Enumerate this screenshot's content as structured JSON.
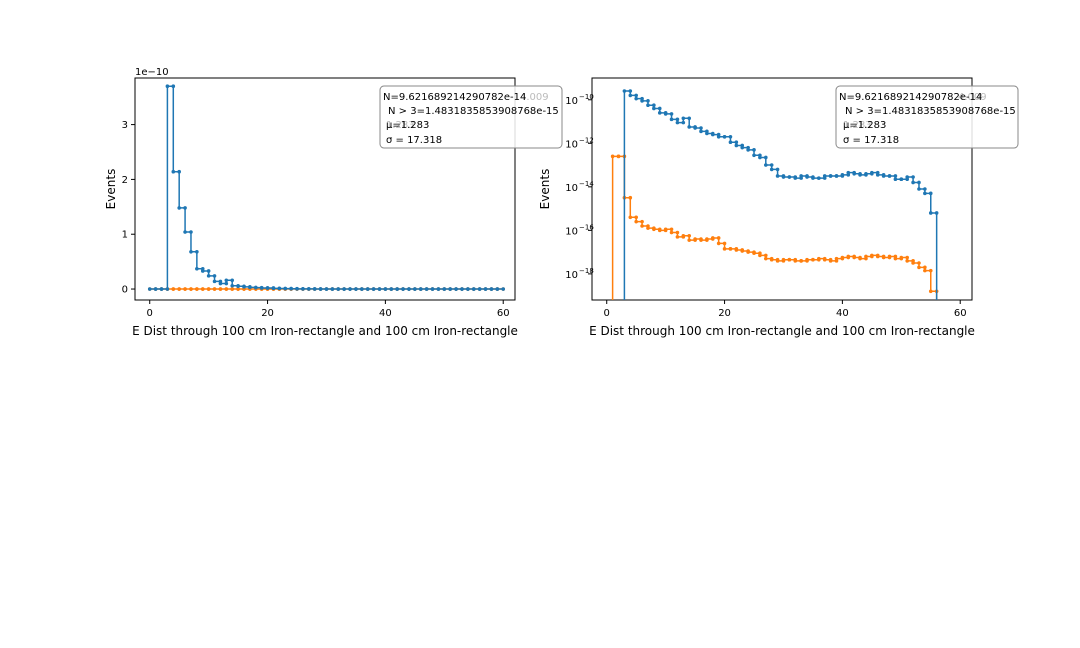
{
  "chart_data": [
    {
      "type": "line",
      "step": true,
      "yscale": "linear",
      "xlabel": "E Dist through 100 cm Iron-rectangle and 100 cm Iron-rectangle",
      "ylabel": "Events",
      "offset_text": "1e−10",
      "xlim": [
        -2.5,
        62
      ],
      "ylim": [
        -0.2,
        3.85
      ],
      "xticks": [
        0,
        20,
        40,
        60
      ],
      "xtick_labels": [
        "0",
        "20",
        "40",
        "60"
      ],
      "yticks": [
        0,
        1,
        2,
        3
      ],
      "ytick_labels": [
        "0",
        "1",
        "2",
        "3"
      ],
      "series": [
        {
          "name": "blue",
          "color": "#1f77b4",
          "x": [
            0.5,
            1.5,
            2.5,
            3.5,
            4.5,
            5.5,
            6.5,
            7.5,
            8.5,
            9.5,
            10.5,
            11.5,
            12.5,
            13.5,
            14.5,
            15.5,
            16.5,
            17.5,
            18.5,
            19.5,
            20.5,
            21.5,
            22.5,
            23.5,
            24.5,
            25.5,
            26.5,
            27.5,
            28.5,
            29.5,
            30.5,
            31.5,
            32.5,
            33.5,
            34.5,
            35.5,
            36.5,
            37.5,
            38.5,
            39.5,
            40.5,
            41.5,
            42.5,
            43.5,
            44.5,
            45.5,
            46.5,
            47.5,
            48.5,
            49.5,
            50.5,
            51.5,
            52.5,
            53.5,
            54.5,
            55.5,
            56.5,
            57.5,
            58.5,
            59.5
          ],
          "y": [
            0,
            0,
            0,
            3.7,
            2.14,
            1.48,
            1.04,
            0.68,
            0.37,
            0.33,
            0.24,
            0.14,
            0.1,
            0.16,
            0.06,
            0.05,
            0.04,
            0.03,
            0.025,
            0.02,
            0.02,
            0.013,
            0.01,
            0.008,
            0.006,
            0.004,
            0.003,
            0.002,
            0.001,
            0,
            0,
            0,
            0,
            0,
            0,
            0,
            0,
            0,
            0,
            0,
            0,
            0,
            0,
            0,
            0,
            0,
            0,
            0,
            0,
            0,
            0,
            0,
            0,
            0,
            0,
            0,
            0,
            0,
            0,
            0
          ]
        },
        {
          "name": "orange",
          "color": "#ff7f0e",
          "x": [
            0.5,
            1.5,
            2.5,
            3.5,
            4.5,
            5.5,
            6.5,
            7.5,
            8.5,
            9.5,
            10.5,
            11.5,
            12.5,
            13.5,
            14.5,
            15.5,
            16.5,
            17.5,
            18.5,
            19.5,
            20.5,
            21.5,
            22.5,
            23.5,
            24.5,
            25.5,
            26.5,
            27.5,
            28.5,
            29.5,
            30.5,
            31.5,
            32.5,
            33.5,
            34.5,
            35.5,
            36.5,
            37.5,
            38.5,
            39.5,
            40.5,
            41.5,
            42.5,
            43.5,
            44.5,
            45.5,
            46.5,
            47.5,
            48.5,
            49.5,
            50.5,
            51.5,
            52.5,
            53.5,
            54.5,
            55.5,
            56.5,
            57.5,
            58.5,
            59.5
          ],
          "y": [
            0,
            0,
            0,
            0,
            0,
            0,
            0,
            0,
            0,
            0,
            0,
            0,
            0,
            0,
            0,
            0,
            0,
            0,
            0,
            0,
            0,
            0,
            0,
            0,
            0,
            0,
            0,
            0,
            0,
            0,
            0,
            0,
            0,
            0,
            0,
            0,
            0,
            0,
            0,
            0,
            0,
            0,
            0,
            0,
            0,
            0,
            0,
            0,
            0,
            0,
            0,
            0,
            0,
            0,
            0,
            0,
            0,
            0,
            0,
            0
          ]
        }
      ],
      "legend_lines": [
        "N=9.621689214290782e-14",
        "N > 3=1.4831835853908768e-15",
        "μ=1.283",
        "σ = 17.318"
      ],
      "legend_ghost": [
        "4.009",
        "1.283"
      ],
      "legend_position": "top-right"
    },
    {
      "type": "line",
      "step": true,
      "yscale": "log",
      "xlabel": "E Dist through 100 cm Iron-rectangle and 100 cm Iron-rectangle",
      "ylabel": "Events",
      "xlim": [
        -2.5,
        62
      ],
      "ylim_log10": [
        -19.2,
        -9.0
      ],
      "xticks": [
        0,
        20,
        40,
        60
      ],
      "xtick_labels": [
        "0",
        "20",
        "40",
        "60"
      ],
      "yticks_log10": [
        -10,
        -12,
        -14,
        -16,
        -18
      ],
      "ytick_labels": [
        "10",
        "10",
        "10",
        "10",
        "10"
      ],
      "ytick_exponents": [
        "−10",
        "−12",
        "−14",
        "−16",
        "−18"
      ],
      "series": [
        {
          "name": "blue",
          "color": "#1f77b4",
          "x": [
            3.5,
            4.5,
            5.5,
            6.5,
            7.5,
            8.5,
            9.5,
            10.5,
            11.5,
            12.5,
            13.5,
            14.5,
            15.5,
            16.5,
            17.5,
            18.5,
            19.5,
            20.5,
            21.5,
            22.5,
            23.5,
            24.5,
            25.5,
            26.5,
            27.5,
            28.5,
            29.5,
            30.5,
            31.5,
            32.5,
            33.5,
            34.5,
            35.5,
            36.5,
            37.5,
            38.5,
            39.5,
            40.5,
            41.5,
            42.5,
            43.5,
            44.5,
            45.5,
            46.5,
            47.5,
            48.5,
            49.5,
            50.5,
            51.5,
            52.5,
            53.5,
            54.5,
            55.5
          ],
          "log10_y": [
            -9.6,
            -9.8,
            -9.95,
            -10.05,
            -10.25,
            -10.4,
            -10.6,
            -10.65,
            -10.9,
            -11.05,
            -10.85,
            -11.25,
            -11.3,
            -11.45,
            -11.55,
            -11.6,
            -11.7,
            -11.7,
            -11.95,
            -12.1,
            -12.2,
            -12.3,
            -12.55,
            -12.65,
            -13.0,
            -13.2,
            -13.5,
            -13.55,
            -13.55,
            -13.6,
            -13.5,
            -13.55,
            -13.6,
            -13.6,
            -13.5,
            -13.5,
            -13.5,
            -13.45,
            -13.35,
            -13.4,
            -13.45,
            -13.4,
            -13.35,
            -13.45,
            -13.5,
            -13.5,
            -13.65,
            -13.65,
            -13.55,
            -13.8,
            -14.1,
            -14.3,
            -15.2
          ],
          "end_x": 56
        },
        {
          "name": "orange",
          "color": "#ff7f0e",
          "x": [
            1.5,
            2.5,
            3.5,
            4.5,
            5.5,
            6.5,
            7.5,
            8.5,
            9.5,
            10.5,
            11.5,
            12.5,
            13.5,
            14.5,
            15.5,
            16.5,
            17.5,
            18.5,
            19.5,
            20.5,
            21.5,
            22.5,
            23.5,
            24.5,
            25.5,
            26.5,
            27.5,
            28.5,
            29.5,
            30.5,
            31.5,
            32.5,
            33.5,
            34.5,
            35.5,
            36.5,
            37.5,
            38.5,
            39.5,
            40.5,
            41.5,
            42.5,
            43.5,
            44.5,
            45.5,
            46.5,
            47.5,
            48.5,
            49.5,
            50.5,
            51.5,
            52.5,
            53.5,
            54.5,
            55.5
          ],
          "log10_y": [
            -12.6,
            -12.6,
            -14.5,
            -15.4,
            -15.6,
            -15.8,
            -15.9,
            -15.95,
            -16.0,
            -15.95,
            -16.1,
            -16.3,
            -16.25,
            -16.45,
            -16.4,
            -16.45,
            -16.4,
            -16.35,
            -16.6,
            -16.85,
            -16.85,
            -16.9,
            -16.95,
            -17.0,
            -17.05,
            -17.15,
            -17.3,
            -17.35,
            -17.4,
            -17.35,
            -17.35,
            -17.4,
            -17.4,
            -17.35,
            -17.35,
            -17.3,
            -17.35,
            -17.4,
            -17.3,
            -17.25,
            -17.2,
            -17.25,
            -17.3,
            -17.2,
            -17.15,
            -17.2,
            -17.25,
            -17.2,
            -17.3,
            -17.25,
            -17.4,
            -17.5,
            -17.7,
            -17.85,
            -18.8
          ],
          "start_x": 1,
          "end_x": 56
        }
      ],
      "legend_lines": [
        "N=9.621689214290782e-14",
        "N > 3=1.4831835853908768e-15",
        "μ=1.283",
        "σ = 17.318"
      ],
      "legend_ghost": [
        "4.009",
        "1.283"
      ],
      "legend_position": "top-right"
    }
  ]
}
